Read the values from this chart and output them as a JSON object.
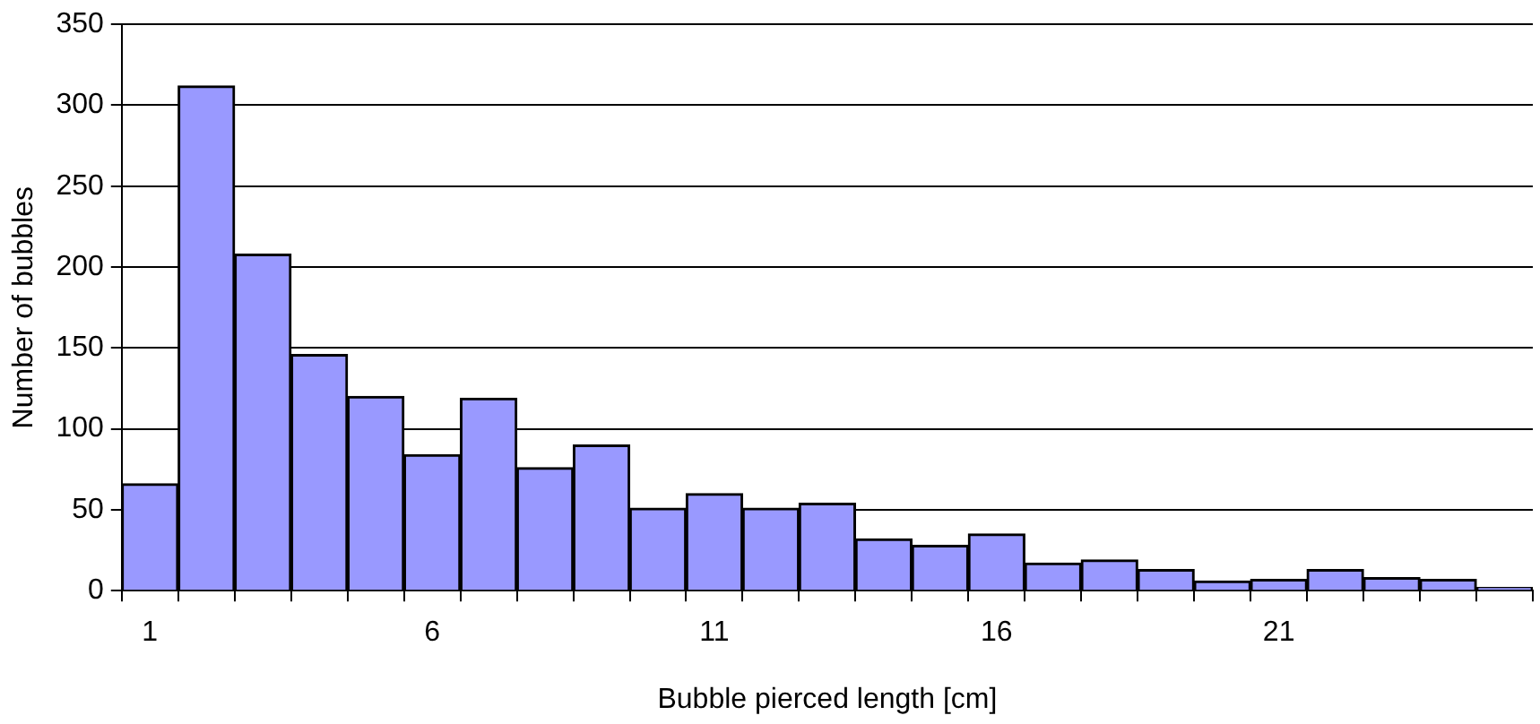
{
  "chart_data": {
    "type": "bar",
    "xlabel": "Bubble pierced length [cm]",
    "ylabel": "Number of bubbles",
    "categories": [
      "1",
      null,
      null,
      null,
      null,
      "6",
      null,
      null,
      null,
      null,
      "11",
      null,
      null,
      null,
      null,
      "16",
      null,
      null,
      null,
      null,
      "21",
      null,
      null,
      null,
      null
    ],
    "values": [
      66,
      312,
      208,
      146,
      120,
      84,
      119,
      76,
      90,
      51,
      60,
      51,
      54,
      32,
      28,
      35,
      17,
      19,
      13,
      6,
      7,
      13,
      8,
      7,
      2
    ],
    "color": "#9999ff",
    "ylim": [
      0,
      350
    ],
    "yticks": [
      0,
      50,
      100,
      150,
      200,
      250,
      300,
      350
    ],
    "grid": "y",
    "legend": false
  }
}
